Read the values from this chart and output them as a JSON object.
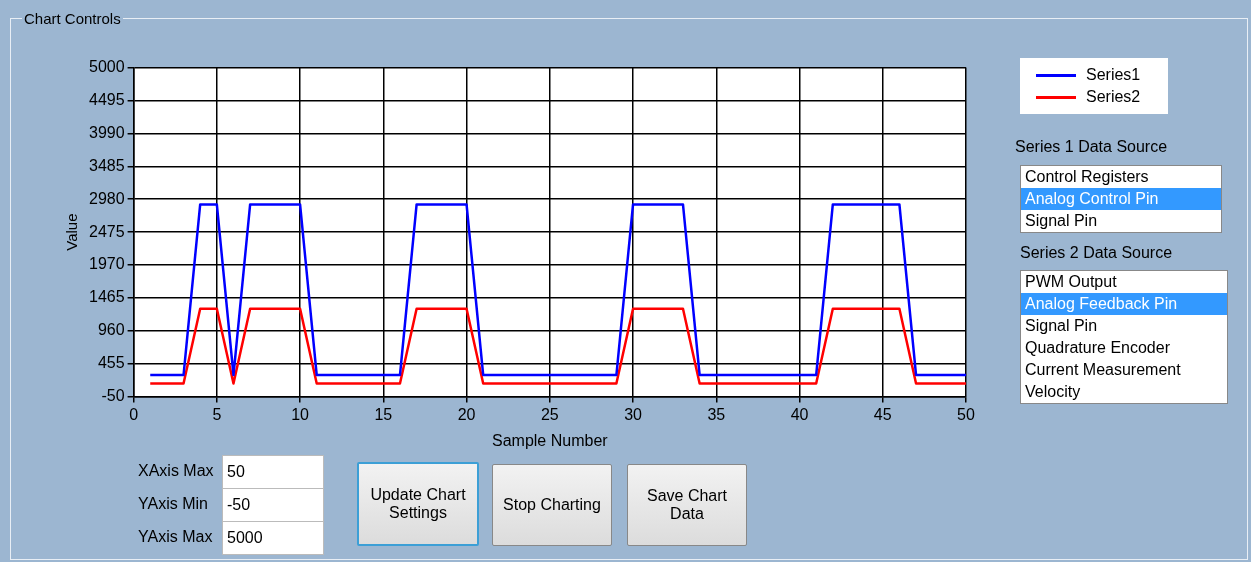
{
  "chart_data": {
    "type": "line",
    "xlabel": "Sample Number",
    "ylabel": "Value",
    "x": [
      1,
      2,
      3,
      4,
      5,
      6,
      7,
      8,
      9,
      10,
      11,
      12,
      13,
      14,
      15,
      16,
      17,
      18,
      19,
      20,
      21,
      22,
      23,
      24,
      25,
      26,
      27,
      28,
      29,
      30,
      31,
      32,
      33,
      34,
      35,
      36,
      37,
      38,
      39,
      40,
      41,
      42,
      43,
      44,
      45,
      46,
      47,
      48,
      49,
      50
    ],
    "series": [
      {
        "name": "Series1",
        "color": "#0000ff",
        "values": [
          280,
          280,
          280,
          2900,
          2900,
          280,
          2900,
          2900,
          2900,
          2900,
          280,
          280,
          280,
          280,
          280,
          280,
          2900,
          2900,
          2900,
          2900,
          280,
          280,
          280,
          280,
          280,
          280,
          280,
          280,
          280,
          2900,
          2900,
          2900,
          2900,
          280,
          280,
          280,
          280,
          280,
          280,
          280,
          280,
          2900,
          2900,
          2900,
          2900,
          2900,
          280,
          280,
          280,
          280
        ]
      },
      {
        "name": "Series2",
        "color": "#ff0000",
        "values": [
          150,
          150,
          150,
          1300,
          1300,
          150,
          1300,
          1300,
          1300,
          1300,
          150,
          150,
          150,
          150,
          150,
          150,
          1300,
          1300,
          1300,
          1300,
          150,
          150,
          150,
          150,
          150,
          150,
          150,
          150,
          150,
          1300,
          1300,
          1300,
          1300,
          150,
          150,
          150,
          150,
          150,
          150,
          150,
          150,
          1300,
          1300,
          1300,
          1300,
          1300,
          150,
          150,
          150,
          150
        ]
      }
    ],
    "xlim": [
      0,
      50
    ],
    "xticks": [
      0,
      5,
      10,
      15,
      20,
      25,
      30,
      35,
      40,
      45,
      50
    ],
    "ylim": [
      -50,
      5000
    ],
    "yticks": [
      -50,
      455,
      960,
      1465,
      1970,
      2475,
      2980,
      3485,
      3990,
      4495,
      5000
    ],
    "grid": true,
    "legend": "top right",
    "marker": "none",
    "line_style": "solid",
    "annotations": [
      "Chart Controls",
      "Series 1 Data Source",
      "Control Registers",
      "Analog Control Pin",
      "Signal Pin",
      "Series 2 Data Source",
      "PWM Output",
      "Analog Feedback Pin",
      "Signal Pin",
      "Quadrature Encoder",
      "Current Measurement",
      "Velocity",
      "XAxis Max",
      "50",
      "YAxis Min",
      "-50",
      "YAxis Max",
      "5000",
      "Update Chart Settings",
      "Stop Charting",
      "Save Chart Data"
    ]
  }
}
